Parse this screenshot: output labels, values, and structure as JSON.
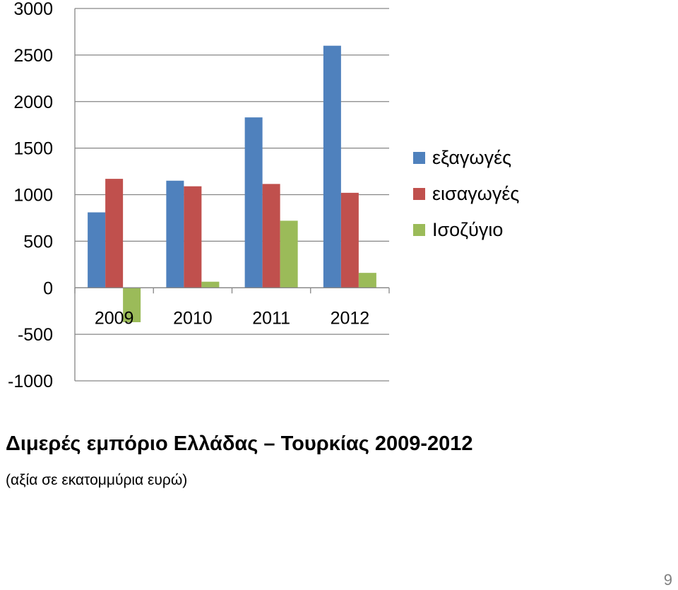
{
  "chart_data": {
    "type": "bar",
    "title": "",
    "xlabel": "",
    "ylabel": "",
    "categories": [
      "2009",
      "2010",
      "2011",
      "2012"
    ],
    "series": [
      {
        "name": "εξαγωγές",
        "color": "#4F81BD",
        "values": [
          810,
          1150,
          1830,
          2600
        ]
      },
      {
        "name": "εισαγωγές",
        "color": "#C0504D",
        "values": [
          1170,
          1090,
          1115,
          1020
        ]
      },
      {
        "name": "Ισοζύγιο",
        "color": "#9BBB59",
        "values": [
          -370,
          65,
          720,
          160
        ]
      }
    ],
    "ylim": [
      -1000,
      3000
    ],
    "yticks": [
      3000,
      2500,
      2000,
      1500,
      1000,
      500,
      0,
      -500,
      -1000
    ],
    "grid": true,
    "legend_position": "right"
  },
  "caption": {
    "title": "Διμερές εμπόριο Ελλάδας – Τουρκίας 2009-2012",
    "subtitle": "(αξία σε εκατομμύρια ευρώ)"
  },
  "page_number": "9"
}
